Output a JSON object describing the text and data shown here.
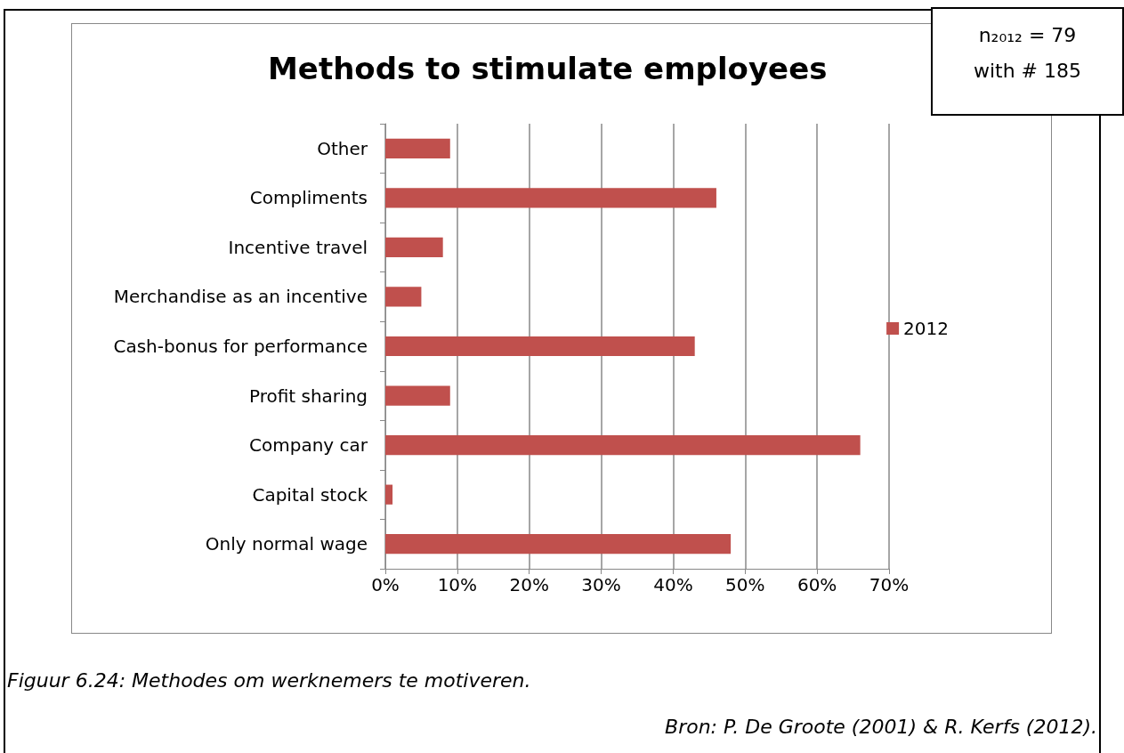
{
  "chart_data": {
    "type": "bar",
    "orientation": "horizontal",
    "title": "Methods to stimulate employees",
    "categories": [
      "Other",
      "Compliments",
      "Incentive travel",
      "Merchandise as an incentive",
      "Cash-bonus for performance",
      "Profit sharing",
      "Company car",
      "Capital stock",
      "Only normal wage"
    ],
    "series": [
      {
        "name": "2012",
        "color": "#c0504d",
        "values": [
          9,
          46,
          8,
          5,
          43,
          9,
          66,
          1,
          48
        ]
      }
    ],
    "xlim": [
      0,
      70
    ],
    "xticks": [
      {
        "value": 0,
        "label": "0%"
      },
      {
        "value": 10,
        "label": "10%"
      },
      {
        "value": 20,
        "label": "20%"
      },
      {
        "value": 30,
        "label": "30%"
      },
      {
        "value": 40,
        "label": "40%"
      },
      {
        "value": 50,
        "label": "50%"
      },
      {
        "value": 60,
        "label": "60%"
      },
      {
        "value": 70,
        "label": "70%"
      }
    ],
    "grid": "x",
    "legend": "right",
    "annotations": [
      "n₂₀₁₂ = 79",
      "with # 185",
      "Figuur 6.24: Methodes om werknemers te motiveren.",
      "Bron: P. De Groote (2001) & R. Kerfs (2012)."
    ]
  }
}
